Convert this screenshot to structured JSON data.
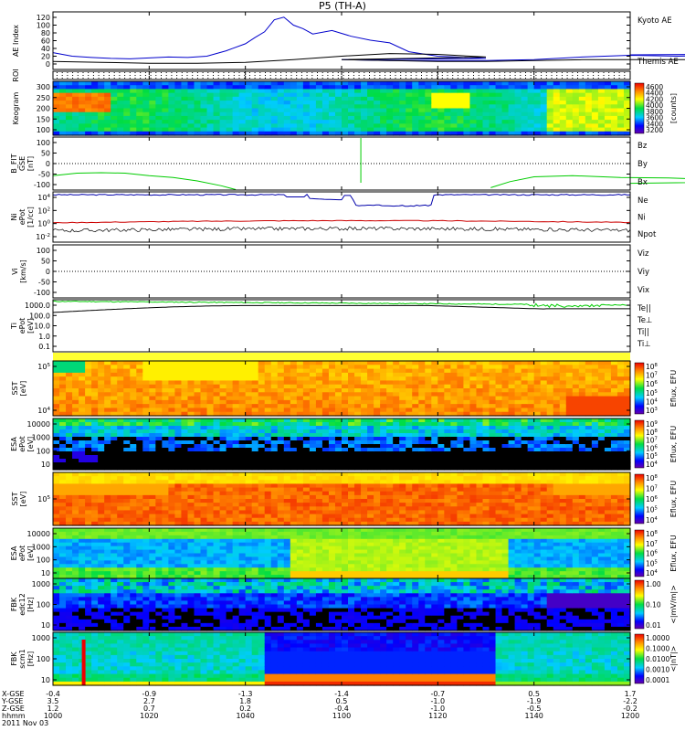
{
  "title": "P5 (TH-A)",
  "chart_data": [
    {
      "type": "line",
      "id": "ae",
      "ylabel": [
        "AE Index"
      ],
      "yticks": [
        "120",
        "100",
        "80",
        "60",
        "40",
        "20",
        "0"
      ],
      "ylim": [
        0,
        130
      ],
      "series": [
        {
          "name": "Kyoto AE",
          "color": "#0000cc",
          "x": [
            1000,
            1004,
            1008,
            1012,
            1016,
            1020,
            1024,
            1028,
            1032,
            1036,
            1040,
            1042,
            1044,
            1046,
            1048,
            1050,
            1052,
            1054,
            1058,
            1062,
            1066,
            1070,
            1074,
            1080,
            1090,
            1100,
            1110,
            1120,
            1130,
            1140,
            1150,
            1160,
            1170,
            1180,
            1190,
            1200
          ],
          "y": [
            38,
            30,
            27,
            25,
            24,
            26,
            28,
            27,
            30,
            42,
            58,
            72,
            85,
            112,
            118,
            100,
            92,
            80,
            88,
            75,
            66,
            60,
            40,
            30,
            25,
            22,
            20,
            20,
            20,
            22,
            28,
            32,
            30,
            32,
            35,
            33
          ]
        },
        {
          "name": "Themis AE",
          "color": "#000000",
          "x": [
            1000,
            1010,
            1020,
            1030,
            1040,
            1050,
            1060,
            1070,
            1080,
            1090,
            1100,
            1110,
            1120,
            1130,
            1140,
            1150,
            1160,
            1170,
            1180,
            1190,
            1200
          ],
          "y": [
            18,
            16,
            14,
            14,
            16,
            22,
            30,
            36,
            34,
            28,
            22,
            20,
            18,
            18,
            20,
            22,
            22,
            22,
            22,
            22,
            22
          ]
        }
      ]
    },
    {
      "type": "heatmap",
      "id": "roi",
      "ylabel": [
        "ROI"
      ],
      "yticks": []
    },
    {
      "type": "heatmap",
      "id": "keogram",
      "ylabel": [
        "Keogram"
      ],
      "yticks": [
        "300",
        "250",
        "200",
        "150",
        "100"
      ],
      "ylim": [
        100,
        300
      ],
      "colorbar": {
        "label": "[counts]",
        "ticks": [
          "4600",
          "4400",
          "4200",
          "4000",
          "3800",
          "3600",
          "3400",
          "3200"
        ]
      }
    },
    {
      "type": "line",
      "id": "bfit",
      "ylabel": [
        "B_FIT",
        "GSE",
        "[nT]"
      ],
      "yticks": [
        "100",
        "50",
        "0",
        "-50",
        "-100"
      ],
      "ylim": [
        -110,
        110
      ],
      "series": [
        {
          "name": "Bz",
          "color": "#cc0000"
        },
        {
          "name": "By",
          "color": "#00cc00",
          "x": [
            1000,
            1005,
            1010,
            1015,
            1020,
            1025,
            1030,
            1035,
            1038
          ],
          "y": [
            -50,
            -40,
            -38,
            -40,
            -50,
            -58,
            -72,
            -92,
            -108
          ]
        },
        {
          "name": "Bx",
          "color": "#0000cc"
        }
      ]
    },
    {
      "type": "line",
      "id": "density",
      "ylabel": [
        "Ni",
        "ePot",
        "[1/cc]"
      ],
      "yticks": [
        "10^4",
        "10^2",
        "10^0",
        "10^-2"
      ],
      "ylim": [
        -2.5,
        4.5
      ],
      "log": true,
      "series": [
        {
          "name": "Ne",
          "color": "#cc0000"
        },
        {
          "name": "Ni",
          "color": "#000000"
        },
        {
          "name": "Npot",
          "color": "#000088"
        }
      ]
    },
    {
      "type": "line",
      "id": "velocity",
      "ylabel": [
        "Vi",
        "[km/s]"
      ],
      "yticks": [
        "100",
        "50",
        "0",
        "-50",
        "-100"
      ],
      "ylim": [
        -110,
        110
      ],
      "series": [
        {
          "name": "Viz",
          "color": "#cc0000"
        },
        {
          "name": "Viy",
          "color": "#00cc00"
        },
        {
          "name": "Vix",
          "color": "#0000cc"
        }
      ]
    },
    {
      "type": "line",
      "id": "temp",
      "ylabel": [
        "Ti",
        "ePot",
        "[eV]"
      ],
      "yticks": [
        "1000.0",
        "100.0",
        "10.0",
        "1.0",
        "0.1"
      ],
      "ylim": [
        -1.3,
        3.6
      ],
      "log": true,
      "series": [
        {
          "name": "Te||",
          "color": "#000000"
        },
        {
          "name": "Te⊥",
          "color": "#cc0000"
        },
        {
          "name": "Ti||",
          "color": "#00cc00"
        },
        {
          "name": "Ti⊥",
          "color": "#0000cc"
        }
      ]
    },
    {
      "type": "heatmap",
      "id": "sst_e",
      "ylabel": [
        "SST",
        "[eV]"
      ],
      "yticks": [
        "10^5",
        "10^4"
      ],
      "colorbar": {
        "label": "Eflux, EFU",
        "ticks": [
          "10^8",
          "10^7",
          "10^6",
          "10^5",
          "10^4",
          "10^3"
        ]
      }
    },
    {
      "type": "heatmap",
      "id": "esa_e",
      "ylabel": [
        "ESA",
        "ePot",
        "[eV]"
      ],
      "yticks": [
        "10000",
        "1000",
        "100",
        "10"
      ],
      "colorbar": {
        "label": "Eflux, EFU",
        "ticks": [
          "10^9",
          "10^8",
          "10^7",
          "10^6",
          "10^5",
          "10^4"
        ]
      }
    },
    {
      "type": "heatmap",
      "id": "sst_i",
      "ylabel": [
        "SST",
        "[eV]"
      ],
      "yticks": [
        "10^5"
      ],
      "colorbar": {
        "label": "Eflux, EFU",
        "ticks": [
          "10^8",
          "10^7",
          "10^6",
          "10^5",
          "10^4"
        ]
      }
    },
    {
      "type": "heatmap",
      "id": "esa_i",
      "ylabel": [
        "ESA",
        "ePot",
        "[eV]"
      ],
      "yticks": [
        "10000",
        "1000",
        "100",
        "10"
      ],
      "colorbar": {
        "label": "Eflux, EFU",
        "ticks": [
          "10^8",
          "10^7",
          "10^6",
          "10^5",
          "10^4"
        ]
      }
    },
    {
      "type": "heatmap",
      "id": "fbk_e",
      "ylabel": [
        "FBK",
        "edc12",
        "[Hz]"
      ],
      "yticks": [
        "1000",
        "100",
        "10"
      ],
      "colorbar": {
        "label": "<|mV/m|>",
        "ticks": [
          "1.00",
          "0.10",
          "0.01"
        ]
      }
    },
    {
      "type": "heatmap",
      "id": "fbk_b",
      "ylabel": [
        "FBK",
        "scm1",
        "[Hz]"
      ],
      "yticks": [
        "1000",
        "100",
        "10"
      ],
      "colorbar": {
        "label": "<|nT|>",
        "ticks": [
          "1.0000",
          "0.1000",
          "0.0100",
          "0.0010",
          "0.0001"
        ]
      }
    }
  ],
  "time_axis": {
    "row_labels": [
      "X-GSE",
      "Y-GSE",
      "Z-GSE",
      "hhmm",
      "2011 Nov 03"
    ],
    "columns": [
      {
        "x": "-0.4",
        "y": "3.5",
        "z": "1.2",
        "t": "1000"
      },
      {
        "x": "-0.9",
        "y": "2.7",
        "z": "0.7",
        "t": "1020"
      },
      {
        "x": "-1.3",
        "y": "1.8",
        "z": "0.2",
        "t": "1040"
      },
      {
        "x": "-1.4",
        "y": "0.5",
        "z": "-0.4",
        "t": "1100"
      },
      {
        "x": "-0.7",
        "y": "-1.0",
        "z": "-1.0",
        "t": "1120"
      },
      {
        "x": "0.5",
        "y": "-1.9",
        "z": "-0.5",
        "t": "1140"
      },
      {
        "x": "1.7",
        "y": "-2.2",
        "z": "-0.2",
        "t": "1200"
      }
    ]
  }
}
